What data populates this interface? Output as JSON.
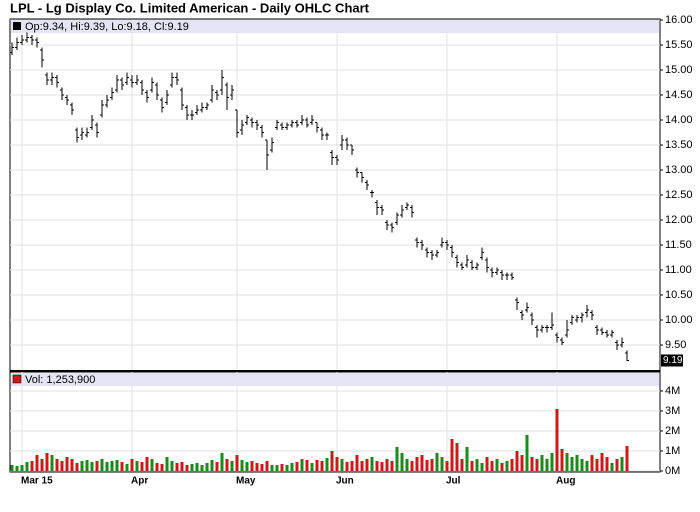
{
  "chart_data": [
    {
      "type": "ohlc",
      "title": "LPL - Lg Display Co. Limited American - Daily OHLC Chart",
      "legend": "Op:9.34, Hi:9.39, Lo:9.18, Cl:9.19",
      "color": "#000000",
      "categories": [
        null,
        null,
        "Mar 15",
        null,
        null,
        null,
        null,
        null,
        null,
        null,
        null,
        null,
        null,
        null,
        null,
        null,
        null,
        null,
        null,
        null,
        null,
        null,
        null,
        null,
        "Apr",
        null,
        null,
        null,
        null,
        null,
        null,
        null,
        null,
        null,
        null,
        null,
        null,
        null,
        null,
        null,
        null,
        null,
        null,
        null,
        null,
        "May",
        null,
        null,
        null,
        null,
        null,
        null,
        null,
        null,
        null,
        null,
        null,
        null,
        null,
        null,
        null,
        null,
        null,
        null,
        null,
        "Jun",
        null,
        null,
        null,
        null,
        null,
        null,
        null,
        null,
        null,
        null,
        null,
        null,
        null,
        null,
        null,
        null,
        null,
        null,
        null,
        null,
        null,
        "Jul",
        null,
        null,
        null,
        null,
        null,
        null,
        null,
        null,
        null,
        null,
        null,
        null,
        null,
        null,
        null,
        null,
        null,
        null,
        null,
        null,
        null,
        "Aug",
        null,
        null,
        null,
        null,
        null,
        null,
        null,
        null,
        null,
        null,
        null,
        null,
        null,
        null
      ],
      "open": [
        15.35,
        15.45,
        15.55,
        15.6,
        15.65,
        15.6,
        15.4,
        14.9,
        14.8,
        14.85,
        14.6,
        14.45,
        14.3,
        13.8,
        13.7,
        13.7,
        13.85,
        13.9,
        14.1,
        14.3,
        14.45,
        14.6,
        14.8,
        14.75,
        14.8,
        14.75,
        14.75,
        14.55,
        14.6,
        14.7,
        14.4,
        14.35,
        14.7,
        14.85,
        14.6,
        14.25,
        14.1,
        14.15,
        14.2,
        14.25,
        14.4,
        14.55,
        14.6,
        14.7,
        14.5,
        14.2,
        13.8,
        13.95,
        14.0,
        13.95,
        13.85,
        13.6,
        13.4,
        13.85,
        13.9,
        13.85,
        13.9,
        13.95,
        13.95,
        14.0,
        13.95,
        13.95,
        13.8,
        13.7,
        13.35,
        13.25,
        13.5,
        13.6,
        13.5,
        13.0,
        12.95,
        12.75,
        12.55,
        12.35,
        12.25,
        11.95,
        11.9,
        11.95,
        12.1,
        12.25,
        12.25,
        11.6,
        11.55,
        11.4,
        11.35,
        11.3,
        11.5,
        11.55,
        11.45,
        11.25,
        11.1,
        11.1,
        11.15,
        11.05,
        11.25,
        11.2,
        11.0,
        10.95,
        10.95,
        10.9,
        10.9,
        10.4,
        10.15,
        10.2,
        10.1,
        9.85,
        9.8,
        9.85,
        9.85,
        9.7,
        9.6,
        9.7,
        9.95,
        10.0,
        10.05,
        10.15,
        10.15,
        9.85,
        9.8,
        9.75,
        9.7,
        9.55,
        9.5,
        9.34
      ],
      "high": [
        15.55,
        15.65,
        15.7,
        15.75,
        15.7,
        15.65,
        15.45,
        14.95,
        14.95,
        14.9,
        14.65,
        14.5,
        14.35,
        13.85,
        13.85,
        13.85,
        14.1,
        13.95,
        14.4,
        14.5,
        14.65,
        14.9,
        14.85,
        14.95,
        14.9,
        14.9,
        14.8,
        14.6,
        14.85,
        14.75,
        14.45,
        14.6,
        14.95,
        14.95,
        14.65,
        14.3,
        14.2,
        14.3,
        14.35,
        14.35,
        14.7,
        14.6,
        15.0,
        14.75,
        14.7,
        14.2,
        14.0,
        14.1,
        14.05,
        14.0,
        13.9,
        13.6,
        13.65,
        14.0,
        13.95,
        13.95,
        14.0,
        14.0,
        14.1,
        14.05,
        14.1,
        13.95,
        13.85,
        13.75,
        13.4,
        13.3,
        13.7,
        13.65,
        13.5,
        13.05,
        12.95,
        12.8,
        12.6,
        12.4,
        12.3,
        12.0,
        11.95,
        12.15,
        12.3,
        12.35,
        12.3,
        11.65,
        11.6,
        11.45,
        11.4,
        11.4,
        11.65,
        11.6,
        11.5,
        11.3,
        11.15,
        11.3,
        11.2,
        11.15,
        11.45,
        11.25,
        11.05,
        11.05,
        11.0,
        10.95,
        10.95,
        10.45,
        10.2,
        10.35,
        10.15,
        9.9,
        9.9,
        9.9,
        10.15,
        9.75,
        9.65,
        10.0,
        10.1,
        10.1,
        10.15,
        10.3,
        10.2,
        9.9,
        9.85,
        9.8,
        9.8,
        9.6,
        9.65,
        9.39
      ],
      "low": [
        15.3,
        15.4,
        15.5,
        15.55,
        15.5,
        15.45,
        15.05,
        14.7,
        14.7,
        14.65,
        14.4,
        14.3,
        14.1,
        13.55,
        13.6,
        13.65,
        13.8,
        13.65,
        14.05,
        14.25,
        14.4,
        14.55,
        14.6,
        14.7,
        14.65,
        14.7,
        14.5,
        14.35,
        14.55,
        14.4,
        14.15,
        14.3,
        14.65,
        14.7,
        14.2,
        14.0,
        14.0,
        14.1,
        14.15,
        14.2,
        14.35,
        14.4,
        14.5,
        14.2,
        14.4,
        13.65,
        13.7,
        13.9,
        13.85,
        13.8,
        13.65,
        13.0,
        13.35,
        13.8,
        13.8,
        13.8,
        13.85,
        13.85,
        13.9,
        13.85,
        13.9,
        13.75,
        13.6,
        13.6,
        13.1,
        13.1,
        13.4,
        13.4,
        13.3,
        12.85,
        12.75,
        12.6,
        12.45,
        12.1,
        12.1,
        11.8,
        11.75,
        11.9,
        12.05,
        12.2,
        12.05,
        11.45,
        11.4,
        11.25,
        11.2,
        11.25,
        11.45,
        11.4,
        11.25,
        11.05,
        11.0,
        11.05,
        11.0,
        11.0,
        11.2,
        10.95,
        10.85,
        10.9,
        10.8,
        10.8,
        10.8,
        10.2,
        10.0,
        10.15,
        9.9,
        9.65,
        9.75,
        9.75,
        9.8,
        9.55,
        9.5,
        9.65,
        9.9,
        9.95,
        9.95,
        10.05,
        10.0,
        9.7,
        9.7,
        9.65,
        9.65,
        9.4,
        9.45,
        9.18
      ],
      "close": [
        15.45,
        15.55,
        15.6,
        15.65,
        15.6,
        15.55,
        15.2,
        14.8,
        14.85,
        14.75,
        14.5,
        14.4,
        14.2,
        13.65,
        13.75,
        13.75,
        14.0,
        13.75,
        14.3,
        14.4,
        14.55,
        14.8,
        14.7,
        14.85,
        14.75,
        14.8,
        14.6,
        14.45,
        14.75,
        14.5,
        14.25,
        14.5,
        14.85,
        14.8,
        14.3,
        14.1,
        14.1,
        14.2,
        14.25,
        14.3,
        14.6,
        14.5,
        14.85,
        14.45,
        14.6,
        13.75,
        13.9,
        14.05,
        13.95,
        13.9,
        13.75,
        13.3,
        13.55,
        13.95,
        13.85,
        13.9,
        13.95,
        13.9,
        14.0,
        13.9,
        14.0,
        13.85,
        13.7,
        13.7,
        13.25,
        13.2,
        13.6,
        13.5,
        13.4,
        12.95,
        12.85,
        12.7,
        12.55,
        12.25,
        12.2,
        11.9,
        11.85,
        12.1,
        12.2,
        12.3,
        12.15,
        11.55,
        11.5,
        11.35,
        11.3,
        11.35,
        11.55,
        11.5,
        11.35,
        11.15,
        11.05,
        11.2,
        11.05,
        11.1,
        11.35,
        11.05,
        10.95,
        11.0,
        10.9,
        10.9,
        10.85,
        10.35,
        10.1,
        10.25,
        10.0,
        9.8,
        9.85,
        9.85,
        9.9,
        9.65,
        9.55,
        9.8,
        10.05,
        10.05,
        10.1,
        10.2,
        10.1,
        9.8,
        9.75,
        9.7,
        9.75,
        9.5,
        9.55,
        9.19
      ],
      "ylim": [
        9.0,
        16.0
      ],
      "yticks": [
        {
          "value": 9.5,
          "label": "9.50"
        },
        {
          "value": 10,
          "label": "10.00"
        },
        {
          "value": 10.5,
          "label": "10.50"
        },
        {
          "value": 11,
          "label": "11.00"
        },
        {
          "value": 11.5,
          "label": "11.50"
        },
        {
          "value": 12,
          "label": "12.00"
        },
        {
          "value": 12.5,
          "label": "12.50"
        },
        {
          "value": 13,
          "label": "13.00"
        },
        {
          "value": 13.5,
          "label": "13.50"
        },
        {
          "value": 14,
          "label": "14.00"
        },
        {
          "value": 14.5,
          "label": "14.50"
        },
        {
          "value": 15,
          "label": "15.00"
        },
        {
          "value": 15.5,
          "label": "15.50"
        },
        {
          "value": 16,
          "label": "16.00"
        }
      ],
      "grid": true
    },
    {
      "type": "bar",
      "legend": "Vol: 1,253,900",
      "up_color": "#1a8a1a",
      "down_color": "#d01818",
      "values": [
        0.3,
        0.25,
        0.3,
        0.45,
        0.5,
        0.8,
        0.6,
        0.9,
        0.8,
        0.6,
        0.5,
        0.7,
        0.6,
        0.4,
        0.5,
        0.55,
        0.45,
        0.5,
        0.6,
        0.45,
        0.5,
        0.55,
        0.45,
        0.35,
        0.6,
        0.5,
        0.45,
        0.7,
        0.6,
        0.4,
        0.35,
        0.7,
        0.5,
        0.4,
        0.45,
        0.3,
        0.35,
        0.4,
        0.3,
        0.4,
        0.55,
        0.45,
        0.9,
        0.6,
        0.5,
        0.8,
        0.55,
        0.45,
        0.5,
        0.4,
        0.35,
        0.5,
        0.3,
        0.3,
        0.35,
        0.3,
        0.4,
        0.45,
        0.6,
        0.55,
        0.4,
        0.55,
        0.5,
        0.65,
        1.0,
        0.7,
        0.6,
        0.45,
        0.5,
        0.8,
        0.5,
        0.6,
        0.7,
        0.5,
        0.45,
        0.6,
        0.5,
        1.2,
        0.9,
        0.6,
        0.5,
        0.7,
        0.8,
        0.55,
        0.6,
        0.9,
        0.7,
        0.5,
        1.6,
        1.4,
        0.6,
        1.2,
        0.5,
        0.6,
        0.4,
        0.7,
        0.5,
        0.6,
        0.4,
        0.5,
        0.6,
        1.0,
        0.8,
        1.8,
        0.7,
        0.6,
        0.8,
        0.6,
        0.9,
        3.1,
        1.1,
        0.9,
        0.7,
        0.8,
        0.6,
        0.5,
        0.8,
        0.6,
        0.9,
        0.7,
        0.4,
        0.6,
        0.7,
        1.2539
      ],
      "ylim": [
        0,
        5
      ],
      "yticks": [
        {
          "value": 0,
          "label": "0M"
        },
        {
          "value": 1,
          "label": "1M"
        },
        {
          "value": 2,
          "label": "2M"
        },
        {
          "value": 3,
          "label": "3M"
        },
        {
          "value": 4,
          "label": "4M"
        }
      ],
      "grid": true
    }
  ]
}
